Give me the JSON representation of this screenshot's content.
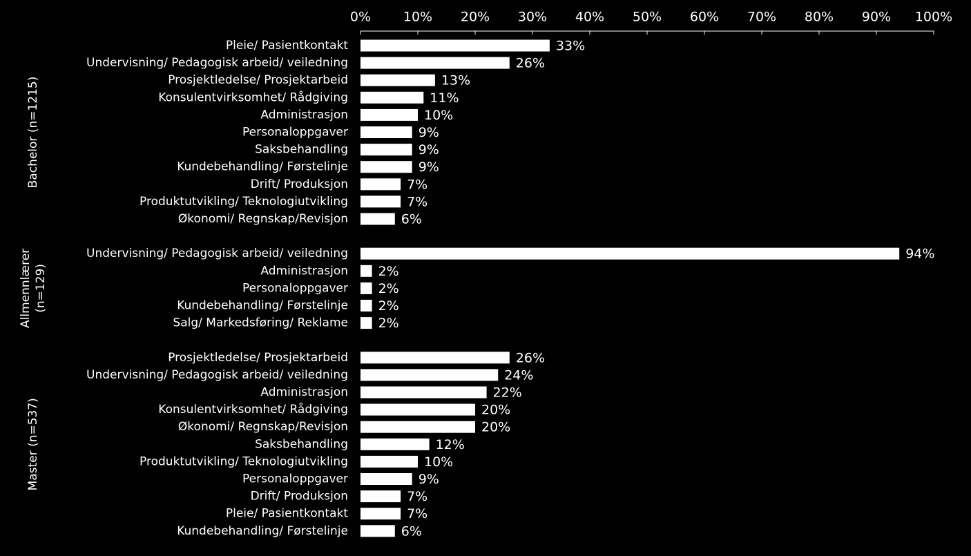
{
  "chart_data": {
    "type": "bar",
    "orientation": "horizontal",
    "color": "#ffffff",
    "xlim": [
      0,
      100
    ],
    "xticks": [
      {
        "value": 0,
        "label": "0%"
      },
      {
        "value": 10,
        "label": "10%"
      },
      {
        "value": 20,
        "label": "20%"
      },
      {
        "value": 30,
        "label": "30%"
      },
      {
        "value": 40,
        "label": "40%"
      },
      {
        "value": 50,
        "label": "50%"
      },
      {
        "value": 60,
        "label": "60%"
      },
      {
        "value": 70,
        "label": "70%"
      },
      {
        "value": 80,
        "label": "80%"
      },
      {
        "value": 90,
        "label": "90%"
      },
      {
        "value": 100,
        "label": "100%"
      }
    ],
    "groups": [
      {
        "label": [
          "Bachelor (n=1215)"
        ],
        "categories": [
          "Pleie/ Pasientkontakt",
          "Undervisning/ Pedagogisk arbeid/ veiledning",
          "Prosjektledelse/ Prosjektarbeid",
          "Konsulentvirksomhet/ Rådgiving",
          "Administrasjon",
          "Personaloppgaver",
          "Saksbehandling",
          "Kundebehandling/ Førstelinje",
          "Drift/ Produksjon",
          "Produktutvikling/ Teknologiutvikling",
          "Økonomi/ Regnskap/Revisjon"
        ],
        "values": [
          33,
          26,
          13,
          11,
          10,
          9,
          9,
          9,
          7,
          7,
          6
        ],
        "value_labels": [
          "33%",
          "26%",
          "13%",
          "11%",
          "10%",
          "9%",
          "9%",
          "9%",
          "7%",
          "7%",
          "6%"
        ]
      },
      {
        "label": [
          "Allmennlærer",
          "(n=129)"
        ],
        "categories": [
          "Undervisning/ Pedagogisk arbeid/ veiledning",
          "Administrasjon",
          "Personaloppgaver",
          "Kundebehandling/ Førstelinje",
          "Salg/ Markedsføring/ Reklame"
        ],
        "values": [
          94,
          2,
          2,
          2,
          2
        ],
        "value_labels": [
          "94%",
          "2%",
          "2%",
          "2%",
          "2%"
        ]
      },
      {
        "label": [
          "Master (n=537)"
        ],
        "categories": [
          "Prosjektledelse/ Prosjektarbeid",
          "Undervisning/ Pedagogisk arbeid/ veiledning",
          "Administrasjon",
          "Konsulentvirksomhet/ Rådgiving",
          "Økonomi/ Regnskap/Revisjon",
          "Saksbehandling",
          "Produktutvikling/ Teknologiutvikling",
          "Personaloppgaver",
          "Drift/ Produksjon",
          "Pleie/ Pasientkontakt",
          "Kundebehandling/ Førstelinje"
        ],
        "values": [
          26,
          24,
          22,
          20,
          20,
          12,
          10,
          9,
          7,
          7,
          6
        ],
        "value_labels": [
          "26%",
          "24%",
          "22%",
          "20%",
          "20%",
          "12%",
          "10%",
          "9%",
          "7%",
          "7%",
          "6%"
        ]
      }
    ]
  }
}
